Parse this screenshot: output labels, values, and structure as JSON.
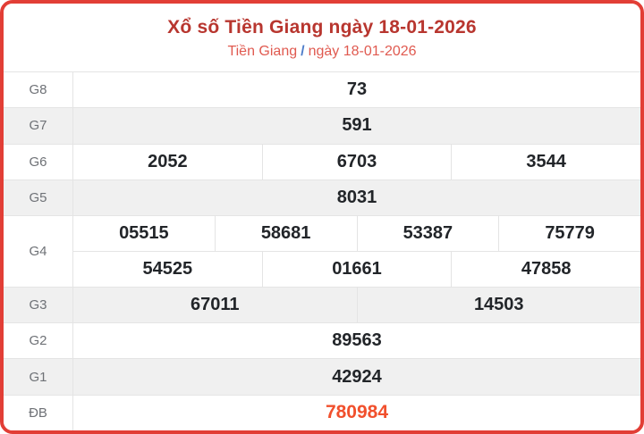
{
  "header": {
    "title": "Xổ số Tiền Giang ngày 18-01-2026",
    "breadcrumb": {
      "region": "Tiền Giang",
      "separator": "/",
      "date": "ngày 18-01-2026"
    }
  },
  "table": {
    "rows": [
      {
        "label": "G8",
        "groups": [
          [
            "73"
          ]
        ]
      },
      {
        "label": "G7",
        "groups": [
          [
            "591"
          ]
        ]
      },
      {
        "label": "G6",
        "groups": [
          [
            "2052",
            "6703",
            "3544"
          ]
        ]
      },
      {
        "label": "G5",
        "groups": [
          [
            "8031"
          ]
        ]
      },
      {
        "label": "G4",
        "groups": [
          [
            "05515",
            "58681",
            "53387",
            "75779"
          ],
          [
            "54525",
            "01661",
            "47858"
          ]
        ]
      },
      {
        "label": "G3",
        "groups": [
          [
            "67011",
            "14503"
          ]
        ]
      },
      {
        "label": "G2",
        "groups": [
          [
            "89563"
          ]
        ]
      },
      {
        "label": "G1",
        "groups": [
          [
            "42924"
          ]
        ]
      },
      {
        "label": "ĐB",
        "groups": [
          [
            "780984"
          ]
        ]
      }
    ]
  },
  "colors": {
    "border_red": "#e23e36",
    "title_red": "#b8362f",
    "breadcrumb_red": "#e05a50",
    "slash_blue": "#4d7cc9",
    "special_number_red": "#f1502d",
    "number_dark": "#222529",
    "stripe_gray": "#f0f0f0",
    "grid_line": "#e4e4e4",
    "label_gray": "#6e7176"
  }
}
